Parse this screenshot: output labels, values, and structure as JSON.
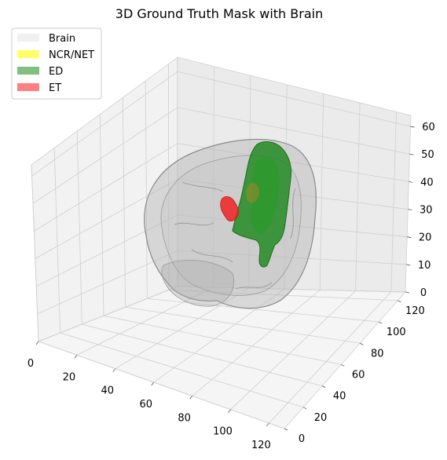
{
  "chart_data": {
    "type": "3d-volume",
    "title": "3D Ground Truth Mask with Brain",
    "axes": {
      "x": {
        "ticks": [
          "0",
          "20",
          "40",
          "60",
          "80",
          "100",
          "120"
        ],
        "range": [
          0,
          128
        ]
      },
      "y": {
        "ticks": [
          "0",
          "20",
          "40",
          "60",
          "80",
          "100",
          "120"
        ],
        "range": [
          0,
          128
        ]
      },
      "z": {
        "ticks": [
          "0",
          "10",
          "20",
          "30",
          "40",
          "50",
          "60"
        ],
        "range": [
          0,
          64
        ]
      }
    },
    "grid": true,
    "legend": {
      "placement": "upper-left",
      "entries": [
        {
          "label": "Brain",
          "color": "#f0f0f0"
        },
        {
          "label": "NCR/NET",
          "color": "#ffff66"
        },
        {
          "label": "ED",
          "color": "#7fbf7f"
        },
        {
          "label": "ET",
          "color": "#ff8080"
        }
      ]
    },
    "volumes": [
      {
        "name": "Brain",
        "color": "#b0b0b0"
      },
      {
        "name": "ED",
        "color": "#228b22"
      },
      {
        "name": "ET",
        "color": "#ee2222"
      },
      {
        "name": "NCR/NET",
        "color": "#8a8a2a"
      }
    ]
  }
}
